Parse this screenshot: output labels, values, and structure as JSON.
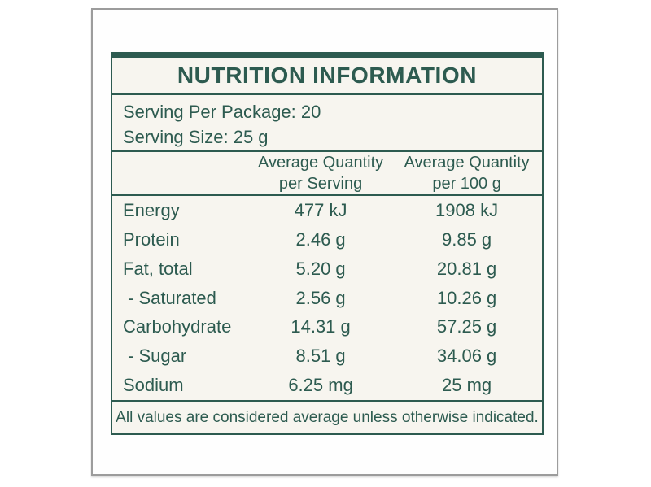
{
  "theme": {
    "accent_color": "#2d5b50",
    "label_background": "#f7f5ef",
    "card_border_color": "#9c9c9c",
    "page_background": "#ffffff"
  },
  "label": {
    "title": "NUTRITION INFORMATION",
    "serving_info": {
      "per_package": "Serving Per Package: 20",
      "size": "Serving Size: 25 g"
    },
    "columns": {
      "per_serving": "Average Quantity\nper Serving",
      "per_100g": "Average Quantity\nper 100 g"
    },
    "rows": [
      {
        "nutrient": "Energy",
        "per_serving": "477 kJ",
        "per_100g": "1908 kJ",
        "sub": false
      },
      {
        "nutrient": "Protein",
        "per_serving": "2.46 g",
        "per_100g": "9.85 g",
        "sub": false
      },
      {
        "nutrient": "Fat, total",
        "per_serving": "5.20 g",
        "per_100g": "20.81 g",
        "sub": false
      },
      {
        "nutrient": "- Saturated",
        "per_serving": "2.56 g",
        "per_100g": "10.26 g",
        "sub": true
      },
      {
        "nutrient": "Carbohydrate",
        "per_serving": "14.31 g",
        "per_100g": "57.25 g",
        "sub": false
      },
      {
        "nutrient": "- Sugar",
        "per_serving": "8.51 g",
        "per_100g": "34.06 g",
        "sub": true
      },
      {
        "nutrient": "Sodium",
        "per_serving": "6.25 mg",
        "per_100g": "25 mg",
        "sub": false
      }
    ],
    "footnote": "All values are considered average unless otherwise indicated."
  }
}
